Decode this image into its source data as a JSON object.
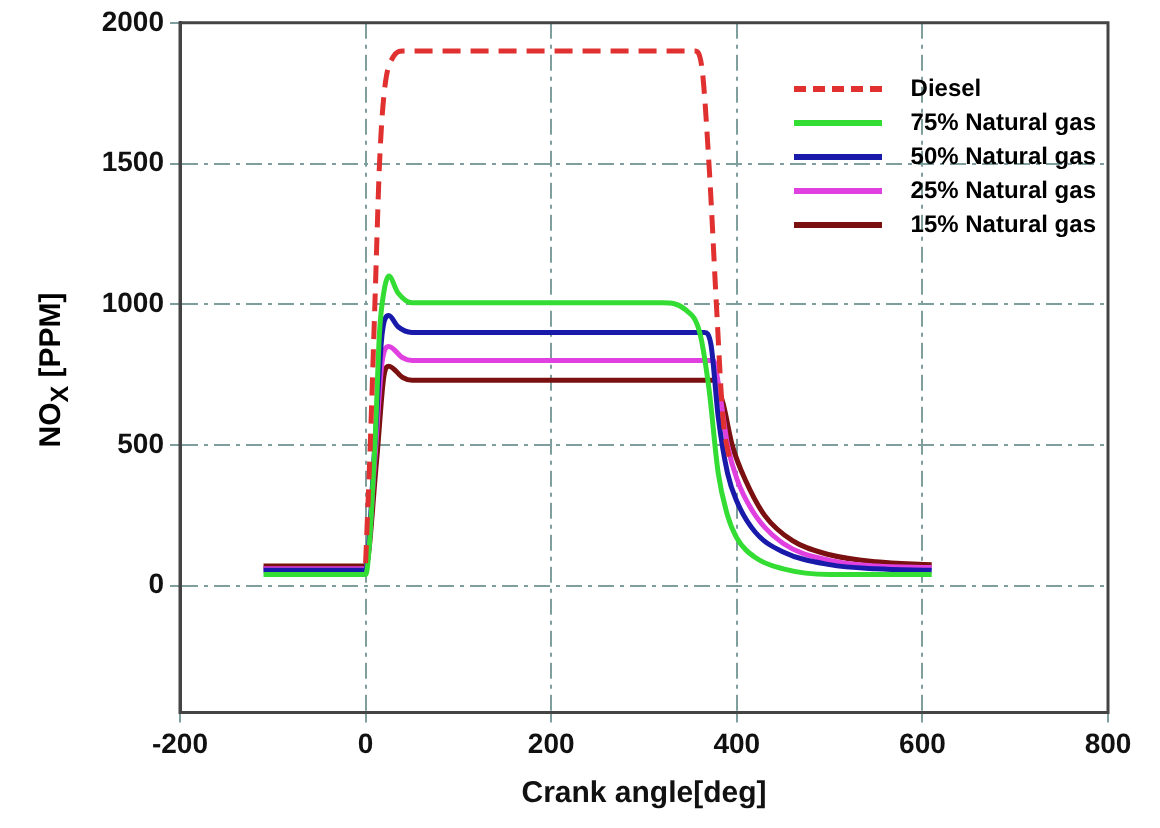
{
  "chart_data": {
    "type": "line",
    "xlabel": "Crank angle[deg]",
    "ylabel": "NO$_{X}$ [PPM]",
    "xlim": [
      -200,
      800
    ],
    "xticks": [
      -200,
      0,
      200,
      400,
      600,
      800
    ],
    "ylim": [
      -450,
      2000
    ],
    "yticks": [
      0,
      500,
      1000,
      1500,
      2000
    ],
    "grid": true,
    "legend": "top right",
    "marker": "none",
    "series": [
      {
        "name": "Diesel",
        "color": "#e03030",
        "line_style": "dashed",
        "x": [
          0,
          5,
          10,
          15,
          20,
          30,
          40,
          355,
          362,
          370,
          378,
          385,
          392
        ],
        "values": [
          80,
          500,
          1000,
          1500,
          1750,
          1880,
          1900,
          1900,
          1850,
          1500,
          1000,
          600,
          450
        ]
      },
      {
        "name": "75% Natural gas",
        "color": "#33dd33",
        "line_style": "solid",
        "x": [
          -110,
          0,
          10,
          15,
          20,
          25,
          35,
          50,
          320,
          345,
          360,
          370,
          380,
          390,
          400,
          420,
          450,
          500,
          610
        ],
        "values": [
          40,
          40,
          500,
          900,
          1050,
          1100,
          1040,
          1005,
          1005,
          980,
          900,
          700,
          400,
          250,
          170,
          100,
          60,
          40,
          40
        ]
      },
      {
        "name": "50% Natural gas",
        "color": "#1a1aaa",
        "line_style": "solid",
        "x": [
          -110,
          0,
          10,
          18,
          25,
          35,
          50,
          365,
          372,
          380,
          390,
          400,
          420,
          450,
          500,
          550,
          610
        ],
        "values": [
          55,
          55,
          500,
          900,
          960,
          920,
          900,
          900,
          860,
          600,
          400,
          300,
          190,
          120,
          75,
          60,
          55
        ]
      },
      {
        "name": "25% Natural gas",
        "color": "#e040e0",
        "line_style": "solid",
        "x": [
          -110,
          0,
          10,
          18,
          25,
          40,
          50,
          375,
          380,
          390,
          400,
          420,
          450,
          500,
          550,
          610
        ],
        "values": [
          60,
          60,
          450,
          800,
          850,
          810,
          800,
          800,
          720,
          500,
          380,
          250,
          150,
          90,
          70,
          65
        ]
      },
      {
        "name": "15% Natural gas",
        "color": "#7a1010",
        "line_style": "solid",
        "x": [
          -110,
          0,
          12,
          20,
          25,
          40,
          50,
          375,
          385,
          395,
          410,
          430,
          460,
          500,
          550,
          610
        ],
        "values": [
          70,
          70,
          450,
          750,
          780,
          740,
          730,
          730,
          650,
          500,
          370,
          250,
          160,
          110,
          85,
          75
        ]
      }
    ]
  }
}
